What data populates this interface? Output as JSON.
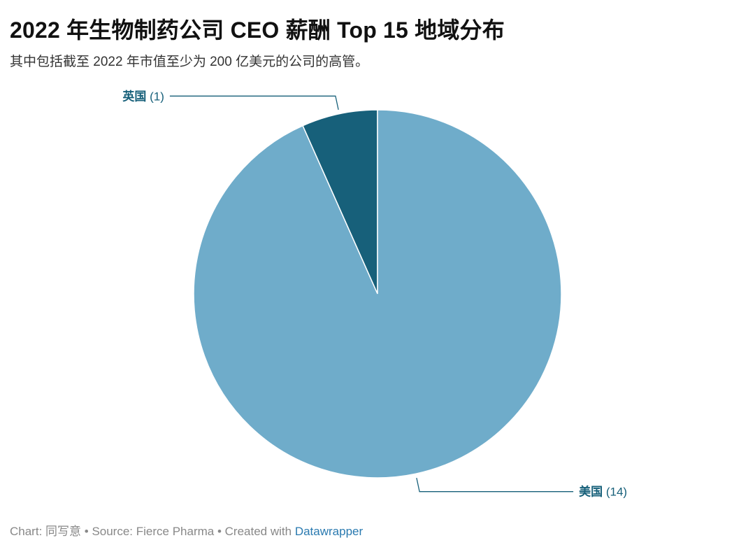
{
  "header": {
    "title": "2022 年生物制药公司 CEO 薪酬 Top 15 地域分布",
    "subtitle": "其中包括截至 2022 年市值至少为 200 亿美元的公司的高管。"
  },
  "chart_data": {
    "type": "pie",
    "title": "2022 年生物制药公司 CEO 薪酬 Top 15 地域分布",
    "subtitle": "其中包括截至 2022 年市值至少为 200 亿美元的公司的高管。",
    "categories": [
      "英国",
      "美国"
    ],
    "values": [
      1,
      14
    ],
    "value_labels": [
      "(1)",
      "(14)"
    ],
    "colors": [
      "#17607a",
      "#6facca"
    ],
    "label_color": "#17607a",
    "start_angle_deg": 0,
    "direction": "counterclockwise"
  },
  "footer": {
    "chart_credit": "Chart: 同写意",
    "separator": " • ",
    "source": "Source: Fierce Pharma",
    "created_with": "Created with ",
    "tool": "Datawrapper"
  }
}
